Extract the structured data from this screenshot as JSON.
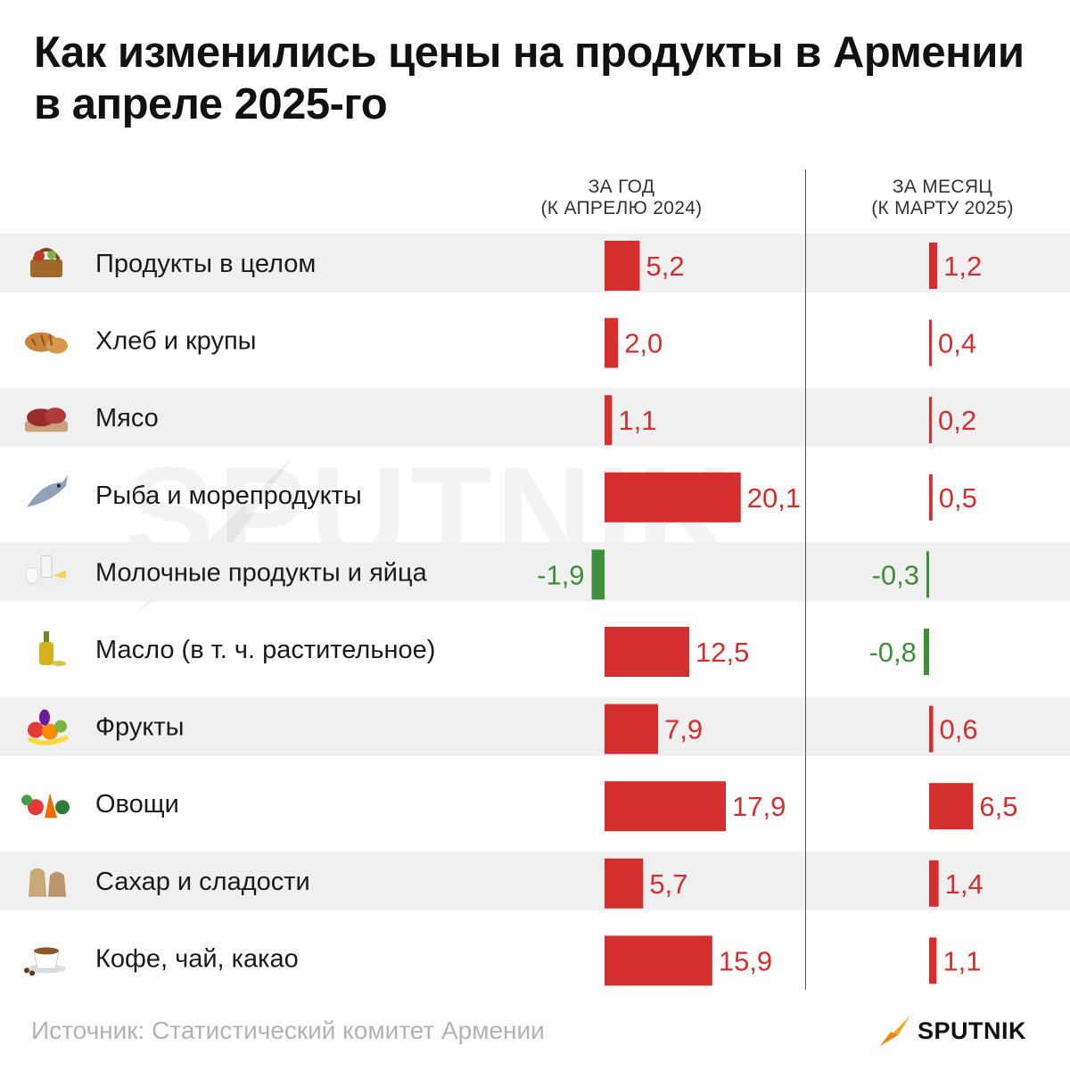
{
  "title": "Как изменились цены на продукты в Армении в апреле 2025-го",
  "columns": {
    "year": {
      "line1": "ЗА ГОД",
      "line2": "(К АПРЕЛЮ 2024)"
    },
    "month": {
      "line1": "ЗА МЕСЯЦ",
      "line2": "(К МАРТУ 2025)"
    }
  },
  "colors": {
    "positive": "#d32f2f",
    "negative": "#3f8f3a",
    "stripe": "#f0f0f0"
  },
  "chart_data": {
    "type": "bar",
    "title": "Как изменились цены на продукты в Армении в апреле 2025-го",
    "unit": "%",
    "categories": [
      "Продукты в целом",
      "Хлеб и крупы",
      "Мясо",
      "Рыба и морепродукты",
      "Молочные продукты и яйца",
      "Масло (в т. ч. растительное)",
      "Фрукты",
      "Овощи",
      "Сахар и сладости",
      "Кофе, чай, какао"
    ],
    "icons": [
      "basket-icon",
      "bread-icon",
      "meat-icon",
      "fish-icon",
      "dairy-icon",
      "oil-bottle-icon",
      "fruits-icon",
      "vegetables-icon",
      "sugar-sack-icon",
      "coffee-cup-icon"
    ],
    "series": [
      {
        "name": "ЗА ГОД (К АПРЕЛЮ 2024)",
        "values": [
          5.2,
          2.0,
          1.1,
          20.1,
          -1.9,
          12.5,
          7.9,
          17.9,
          5.7,
          15.9
        ],
        "labels": [
          "5,2",
          "2,0",
          "1,1",
          "20,1",
          "-1,9",
          "12,5",
          "7,9",
          "17,9",
          "5,7",
          "15,9"
        ]
      },
      {
        "name": "ЗА МЕСЯЦ (К МАРТУ 2025)",
        "values": [
          1.2,
          0.4,
          0.2,
          0.5,
          -0.3,
          -0.8,
          0.6,
          6.5,
          1.4,
          1.1
        ],
        "labels": [
          "1,2",
          "0,4",
          "0,2",
          "0,5",
          "-0,3",
          "-0,8",
          "0,6",
          "6,5",
          "1,4",
          "1,1"
        ]
      }
    ]
  },
  "watermark": "SPUTNIK",
  "source": "Источник: Статистический комитет Армении",
  "brand": {
    "name": "SPUTNIK",
    "icon": "sputnik-arrow-icon"
  }
}
